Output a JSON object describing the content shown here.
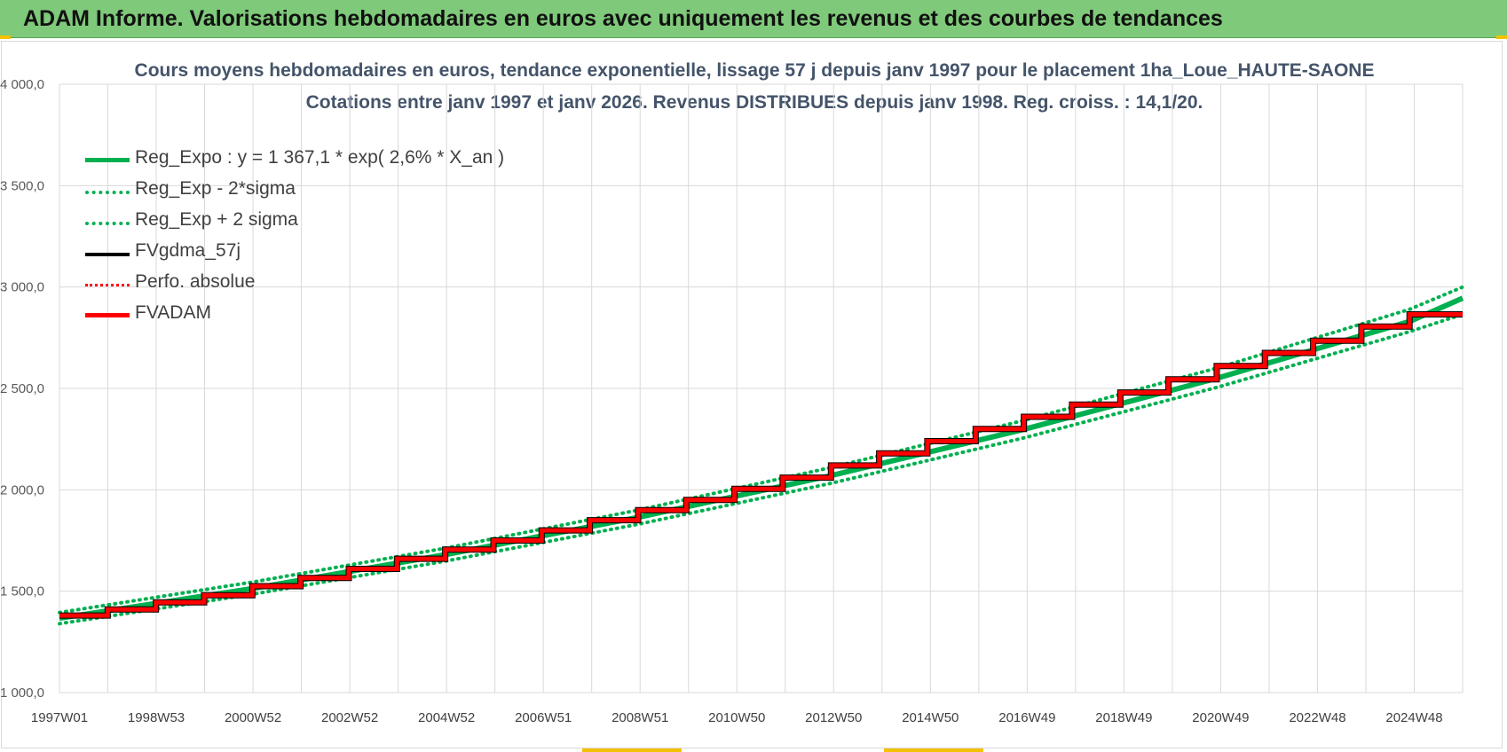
{
  "banner": {
    "title": "ADAM Informe. Valorisations hebdomadaires en euros avec uniquement les revenus et des courbes de tendances"
  },
  "colors": {
    "banner": "#7fc97a",
    "green": "#00b050",
    "black": "#000000",
    "red": "#ff0000",
    "grid": "#d9d9d9",
    "title_text": "#44546a"
  },
  "chart_data": {
    "type": "line",
    "title_line1": "Cours moyens hebdomadaires en euros, tendance exponentielle, lissage 57 j depuis janv 1997 pour le placement 1ha_Loue_HAUTE-SAONE",
    "title_line2": "Cotations entre janv 1997 et janv 2026. Revenus DISTRIBUES depuis janv 1998. Reg. croiss. : 14,1/20.",
    "x_tick_labels": [
      "1997W01",
      "1998W53",
      "2000W52",
      "2002W52",
      "2004W52",
      "2006W51",
      "2008W51",
      "2010W50",
      "2012W50",
      "2014W50",
      "2016W49",
      "2018W49",
      "2020W49",
      "2022W48",
      "2024W48"
    ],
    "x_range_years": [
      1997.0,
      2026.1
    ],
    "ylim": [
      1000,
      4000
    ],
    "y_ticks": [
      1000,
      1500,
      2000,
      2500,
      3000,
      3500,
      4000
    ],
    "y_tick_labels": [
      "1 000,0",
      "1 500,0",
      "2 000,0",
      "2 500,0",
      "3 000,0",
      "3 500,0",
      "4 000,0"
    ],
    "grid": true,
    "legend_position": "top-left",
    "legend": [
      {
        "name": "Reg_Expo : y = 1 367,1 * exp( 2,6% *  X_an )",
        "color": "#00b050",
        "style": "solid-thick"
      },
      {
        "name": "Reg_Exp - 2*sigma",
        "color": "#00b050",
        "style": "dotted"
      },
      {
        "name": "Reg_Exp + 2 sigma",
        "color": "#00b050",
        "style": "dotted"
      },
      {
        "name": "FVgdma_57j",
        "color": "#000000",
        "style": "solid"
      },
      {
        "name": "Perfo. absolue",
        "color": "#ff0000",
        "style": "dotted"
      },
      {
        "name": "FVADAM",
        "color": "#ff0000",
        "style": "solid-thick"
      }
    ],
    "series": [
      {
        "name": "Reg_Expo : y = 1 367,1 * exp( 2,6% *  X_an )",
        "x": [
          1997.0,
          2001.0,
          2005.0,
          2009.0,
          2013.0,
          2017.0,
          2021.0,
          2025.0,
          2026.1
        ],
        "values": [
          1367,
          1513,
          1680,
          1864,
          2070,
          2298,
          2550,
          2830,
          2945
        ]
      },
      {
        "name": "Reg_Exp - 2*sigma",
        "x": [
          1997.0,
          2001.0,
          2005.0,
          2009.0,
          2013.0,
          2017.0,
          2021.0,
          2025.0,
          2026.1
        ],
        "values": [
          1340,
          1485,
          1648,
          1830,
          2032,
          2256,
          2505,
          2780,
          2865
        ]
      },
      {
        "name": "Reg_Exp + 2 sigma",
        "x": [
          1997.0,
          2001.0,
          2005.0,
          2009.0,
          2013.0,
          2017.0,
          2021.0,
          2025.0,
          2026.1
        ],
        "values": [
          1395,
          1545,
          1712,
          1900,
          2110,
          2342,
          2600,
          2890,
          3000
        ]
      },
      {
        "name": "FVADAM",
        "step_years": [
          1997.0,
          1998.0,
          1999.0,
          2000.0,
          2001.0,
          2002.0,
          2003.0,
          2004.0,
          2005.0,
          2006.0,
          2007.0,
          2008.0,
          2009.0,
          2010.0,
          2011.0,
          2012.0,
          2013.0,
          2014.0,
          2015.0,
          2016.0,
          2017.0,
          2018.0,
          2019.0,
          2020.0,
          2021.0,
          2022.0,
          2023.0,
          2024.0,
          2025.0,
          2026.1
        ],
        "values": [
          1380,
          1410,
          1445,
          1480,
          1525,
          1565,
          1610,
          1660,
          1705,
          1750,
          1800,
          1850,
          1900,
          1950,
          2005,
          2060,
          2120,
          2180,
          2240,
          2300,
          2360,
          2420,
          2480,
          2545,
          2610,
          2675,
          2735,
          2805,
          2865
        ]
      },
      {
        "name": "FVgdma_57j",
        "step_years": [
          1997.0,
          1998.0,
          1999.0,
          2000.0,
          2001.0,
          2002.0,
          2003.0,
          2004.0,
          2005.0,
          2006.0,
          2007.0,
          2008.0,
          2009.0,
          2010.0,
          2011.0,
          2012.0,
          2013.0,
          2014.0,
          2015.0,
          2016.0,
          2017.0,
          2018.0,
          2019.0,
          2020.0,
          2021.0,
          2022.0,
          2023.0,
          2024.0,
          2025.0,
          2026.1
        ],
        "values": [
          1380,
          1410,
          1445,
          1480,
          1525,
          1565,
          1610,
          1660,
          1705,
          1750,
          1800,
          1850,
          1900,
          1950,
          2005,
          2060,
          2120,
          2180,
          2240,
          2300,
          2360,
          2420,
          2480,
          2545,
          2610,
          2675,
          2735,
          2805,
          2865
        ]
      }
    ]
  }
}
